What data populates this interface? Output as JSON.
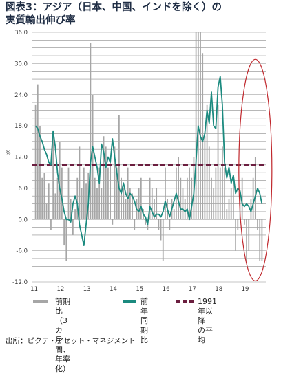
{
  "header": {
    "title_line1": "図表3：アジア（日本、中国、インドを除く）の",
    "title_line2": "実質輸出伸び率"
  },
  "colors": {
    "bar": "#a6a6a6",
    "line": "#1b8a7f",
    "average": "#6b1e3f",
    "highlight_ellipse": "#c0282d",
    "grid": "#8c8c8c",
    "title": "#1f2d44"
  },
  "chart_data": {
    "type": "bar+line",
    "ylabel": "%",
    "ylim": [
      -12,
      36
    ],
    "yticks": [
      -12.0,
      -6.0,
      0.0,
      6.0,
      12.0,
      18.0,
      24.0,
      30.0,
      36.0
    ],
    "ytick_labels": [
      "-12.0",
      "-6.0",
      "0.0",
      "6.0",
      "12.0",
      "18.0",
      "24.0",
      "30.0",
      "36.0"
    ],
    "x_start_year": 2011,
    "x_labels": [
      "11",
      "12",
      "13",
      "14",
      "15",
      "16",
      "17",
      "18",
      "19"
    ],
    "months_per_year": 12,
    "grid": "horizontal, every 1.5",
    "highlight": "ellipse around latest 2019 data",
    "series": [
      {
        "name": "前期比（3カ月間、年率化）",
        "kind": "bar",
        "values": [
          22,
          26,
          18,
          8,
          9,
          3,
          7,
          -2,
          16,
          5,
          8,
          15,
          10,
          -5,
          -8,
          10,
          4,
          -3,
          2,
          8,
          14,
          6,
          10,
          7,
          9,
          34,
          24,
          8,
          6,
          10,
          6,
          16,
          14,
          10,
          12,
          -1,
          14,
          10,
          20,
          8,
          6,
          4,
          10,
          6,
          5,
          -2,
          4,
          6,
          8,
          2,
          -1,
          -2,
          8,
          6,
          4,
          6,
          -2,
          -4,
          -8,
          10,
          4,
          -2,
          4,
          2,
          10,
          12,
          8,
          6,
          4,
          8,
          10,
          8,
          12,
          36,
          36,
          36,
          32,
          16,
          22,
          14,
          8,
          6,
          10,
          22,
          10,
          14,
          10,
          2,
          4,
          6,
          8,
          -6,
          -2,
          4,
          8,
          -1,
          -8,
          -6,
          4,
          8,
          12,
          -2,
          -8,
          -8,
          -6,
          -4,
          2,
          10,
          4,
          6,
          8
        ]
      },
      {
        "name": "前年同期比",
        "kind": "line",
        "values": [
          18,
          17.5,
          16,
          15,
          13.5,
          12.5,
          11,
          10.5,
          17,
          14,
          9,
          6,
          4,
          1.5,
          0,
          0,
          -0.5,
          3,
          4.5,
          3,
          -1,
          -3,
          -5,
          -1,
          3,
          11,
          14,
          12,
          10,
          7,
          14.5,
          13,
          10,
          12,
          11,
          15.5,
          12,
          9,
          6,
          5,
          7,
          5,
          4,
          5,
          4.5,
          3.5,
          2,
          1.5,
          2.5,
          1,
          0.5,
          -1,
          2.5,
          1.5,
          0.5,
          1,
          1,
          0.5,
          1.5,
          3.5,
          2,
          0.5,
          2,
          3.5,
          5,
          3.5,
          2,
          2,
          1.5,
          2,
          0,
          2.5,
          5,
          11,
          18,
          16,
          15,
          16.5,
          21,
          18.5,
          24.5,
          18,
          17.5,
          25.5,
          27.5,
          22,
          11,
          8,
          10,
          7,
          8.5,
          5,
          6,
          5.5,
          3,
          2.5,
          3,
          2.5,
          1.5,
          3,
          4.5,
          6,
          5,
          3,
          0.5,
          -0.5,
          -2,
          -1,
          1,
          4.5,
          3,
          3.5
        ]
      },
      {
        "name": "1991年以降の平均",
        "kind": "hline",
        "value": 10.5
      }
    ]
  },
  "legend": {
    "bars_label": "前期比（3カ\n月間、年率\n化）",
    "line_label": "前年\n同期\n比",
    "avg_label": "1991年以降\nの平均"
  },
  "source": {
    "text": "出所：ピクテ・アセット・マネジメント"
  }
}
